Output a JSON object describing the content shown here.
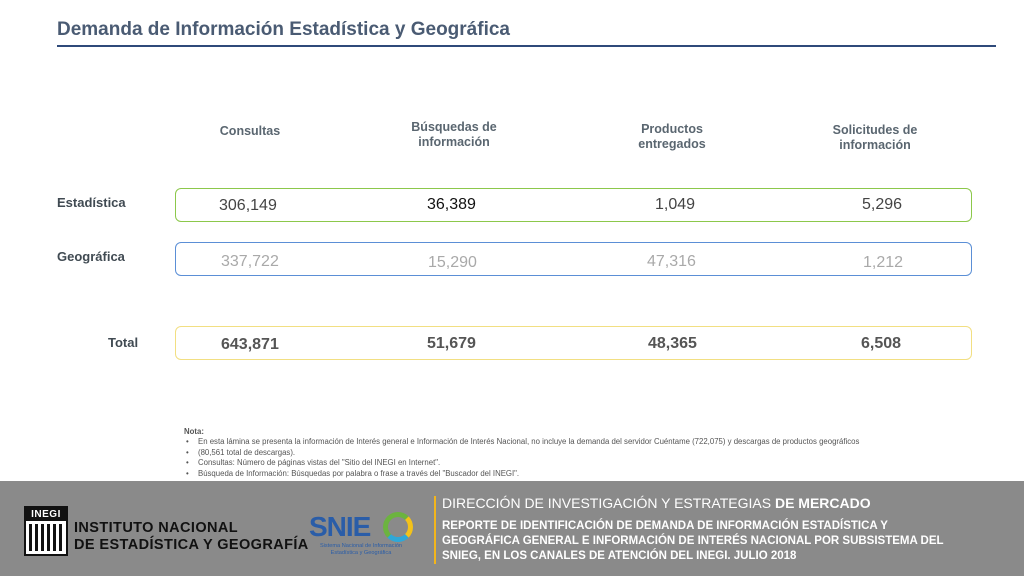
{
  "title": "Demanda de Información Estadística y Geográfica",
  "columns": [
    "Consultas",
    "Búsquedas de información",
    "Productos entregados",
    "Solicitudes de información"
  ],
  "column_lines": [
    [
      "Consultas"
    ],
    [
      "Búsquedas de",
      "información"
    ],
    [
      "Productos",
      "entregados"
    ],
    [
      "Solicitudes de",
      "información"
    ]
  ],
  "rows": {
    "estadistica": {
      "label": "Estadística",
      "values": [
        "306,149",
        "36,389",
        "1,049",
        "5,296"
      ]
    },
    "geografica": {
      "label": "Geográfica",
      "values": [
        "337,722",
        "15,290",
        "47,316",
        "1,212"
      ]
    },
    "total": {
      "label": "Total",
      "values": [
        "643,871",
        "51,679",
        "48,365",
        "6,508"
      ]
    }
  },
  "note": {
    "heading": "Nota:",
    "item1_line1": "En esta lámina se presenta la información de Interés general e Información de Interés Nacional, no incluye la demanda del servidor Cuéntame (722,075) y descargas de productos geográficos",
    "item1_line2": "(80,561 total de descargas).",
    "item2": "Consultas: Número de páginas vistas del \"Sitio del INEGI en Internet\".",
    "item3": "Búsqueda de Información: Búsquedas por palabra o frase a través del \"Buscador del INEGI\"."
  },
  "footer": {
    "inegi_logo_text": "INEGI",
    "inegi_name_line1": "INSTITUTO NACIONAL",
    "inegi_name_line2": "DE ESTADÍSTICA Y GEOGRAFÍA",
    "snieg_word": "SNIE",
    "snieg_sub_line1": "Sistema Nacional de Información",
    "snieg_sub_line2": "Estadística y Geográfica",
    "heading_main": "DIRECCIÓN DE INVESTIGACIÓN Y ESTRATEGIAS",
    "heading_bold": " DE MERCADO",
    "body_line1": "REPORTE DE IDENTIFICACIÓN DE DEMANDA DE INFORMACIÓN ESTADÍSTICA Y",
    "body_line2": "GEOGRÁFICA GENERAL E INFORMACIÓN DE INTERÉS NACIONAL POR SUBSISTEMA DEL",
    "body_line3": "SNIEG, EN LOS CANALES DE ATENCIÓN DEL INEGI. JULIO 2018"
  },
  "colors": {
    "estadistica_border": "#8cc84b",
    "geografica_border": "#5b8fd6",
    "total_border": "#f2df82",
    "footer_bg": "#8a8a8a",
    "footer_accent": "#f3b51b"
  }
}
